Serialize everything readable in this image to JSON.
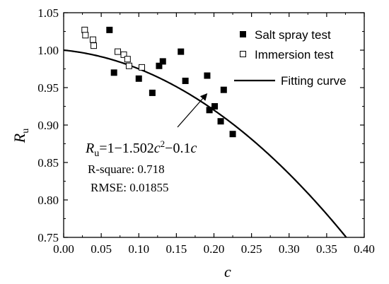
{
  "chart_data": {
    "type": "scatter",
    "xlabel": "c",
    "ylabel": {
      "main": "R",
      "sub": "u"
    },
    "xlim": [
      0.0,
      0.4
    ],
    "ylim": [
      0.75,
      1.05
    ],
    "xticks": [
      "0.00",
      "0.05",
      "0.10",
      "0.15",
      "0.20",
      "0.25",
      "0.30",
      "0.35",
      "0.40"
    ],
    "yticks": [
      "0.75",
      "0.80",
      "0.85",
      "0.90",
      "0.95",
      "1.00",
      "1.05"
    ],
    "grid": false,
    "legend_position": "top-right",
    "series": [
      {
        "name": "Salt spray test",
        "marker": "filled-square",
        "color": "#000000",
        "x": [
          0.061,
          0.067,
          0.1,
          0.118,
          0.127,
          0.132,
          0.156,
          0.162,
          0.191,
          0.194,
          0.201,
          0.209,
          0.213,
          0.225
        ],
        "y": [
          1.027,
          0.97,
          0.962,
          0.943,
          0.979,
          0.985,
          0.998,
          0.959,
          0.966,
          0.92,
          0.925,
          0.905,
          0.947,
          0.888
        ]
      },
      {
        "name": "Immersion test",
        "marker": "open-square",
        "color": "#000000",
        "x": [
          0.028,
          0.029,
          0.039,
          0.04,
          0.072,
          0.08,
          0.085,
          0.087,
          0.104
        ],
        "y": [
          1.027,
          1.02,
          1.014,
          1.006,
          0.998,
          0.994,
          0.988,
          0.979,
          0.977
        ]
      }
    ],
    "curve": {
      "name": "Fitting curve",
      "formula": "R_u = 1 - 1.502c^2 - 0.1c",
      "a2": -1.502,
      "a1": -0.1,
      "a0": 1.0,
      "x_range": [
        0.0,
        0.4
      ]
    },
    "annotation": {
      "equation": {
        "R": "R",
        "sub": "u",
        "rhs_a": "=1−1.502",
        "c1": "c",
        "sup": "2",
        "rhs_b": "−0.1",
        "c2": "c"
      },
      "r_square": "R-square: 0.718",
      "rmse": "RMSE: 0.01855",
      "arrow_to": {
        "x": 0.19,
        "y": 0.941
      }
    }
  }
}
